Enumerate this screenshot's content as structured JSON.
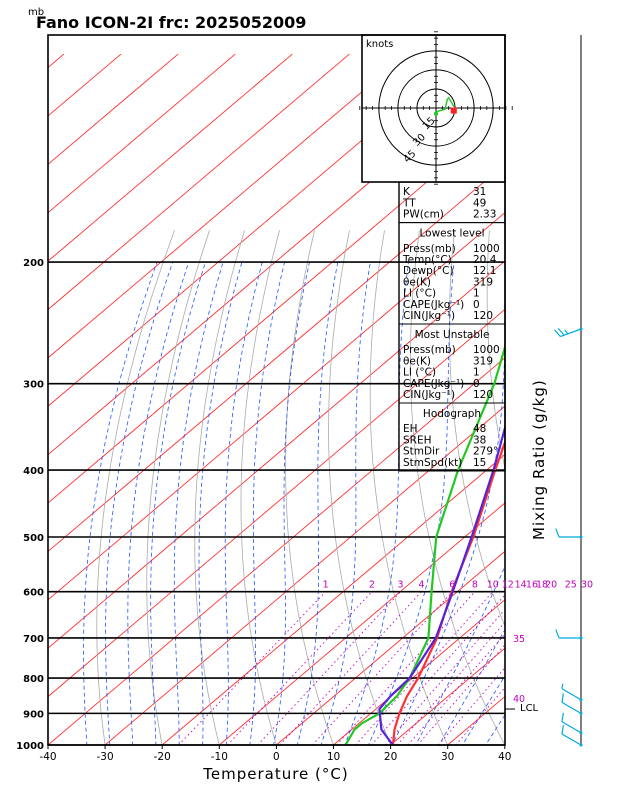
{
  "chart_data": {
    "type": "skew-t",
    "title": "Fano ICON-2I frc: 2025052009",
    "yunit": "mb",
    "xlabel": "Temperature (°C)",
    "xlim": [
      -40,
      40
    ],
    "ylim": [
      1000,
      100
    ],
    "xticks": [
      -40,
      -30,
      -20,
      -10,
      0,
      10,
      20,
      30,
      40
    ],
    "pressure_levels": [
      200,
      300,
      400,
      500,
      600,
      700,
      800,
      900,
      1000
    ],
    "mixing_ratio_label": "Mixing Ratio (g/kg)",
    "mixing_ratios": [
      {
        "label": "1",
        "value": 1
      },
      {
        "label": "2",
        "value": 2
      },
      {
        "label": "3",
        "value": 3
      },
      {
        "label": "4",
        "value": 4
      },
      {
        "label": "6",
        "value": 6
      },
      {
        "label": "8",
        "value": 8
      },
      {
        "label": "10",
        "value": 10
      },
      {
        "label": "12",
        "value": 12
      },
      {
        "label": "14",
        "value": 14
      },
      {
        "label": "16",
        "value": 16
      },
      {
        "label": "18",
        "value": 18
      },
      {
        "label": "20",
        "value": 20
      },
      {
        "label": "25",
        "value": 25
      },
      {
        "label": "30",
        "value": 30
      }
    ],
    "moist_adiabat_labels": [
      {
        "label": "35",
        "p": 700
      },
      {
        "label": "40",
        "p": 855
      }
    ],
    "lcl_label": "LCL",
    "lcl_pressure": 887,
    "series": [
      {
        "name": "Temperature",
        "color": "#ff3030",
        "points": [
          [
            1000,
            20.4
          ],
          [
            950,
            17.5
          ],
          [
            900,
            15.0
          ],
          [
            850,
            12.8
          ],
          [
            800,
            11.0
          ],
          [
            700,
            6.0
          ],
          [
            600,
            -1.0
          ],
          [
            500,
            -8.5
          ],
          [
            400,
            -18.5
          ],
          [
            300,
            -31.0
          ],
          [
            250,
            -39.0
          ]
        ]
      },
      {
        "name": "Dewpoint",
        "color": "#22c822",
        "points": [
          [
            1000,
            12.1
          ],
          [
            950,
            10.5
          ],
          [
            930,
            10.5
          ],
          [
            900,
            11.5
          ],
          [
            850,
            11.0
          ],
          [
            800,
            9.5
          ],
          [
            700,
            4.5
          ],
          [
            600,
            -4.5
          ],
          [
            500,
            -15.0
          ],
          [
            400,
            -25.0
          ],
          [
            300,
            -36.5
          ],
          [
            250,
            -45.0
          ]
        ]
      },
      {
        "name": "Parcel",
        "color": "#5522dd",
        "points": [
          [
            1000,
            20.4
          ],
          [
            950,
            15.2
          ],
          [
            887,
            10.6
          ],
          [
            850,
            9.9
          ],
          [
            800,
            9.5
          ],
          [
            700,
            5.8
          ],
          [
            600,
            -0.8
          ],
          [
            500,
            -8.8
          ],
          [
            400,
            -18.8
          ],
          [
            300,
            -32.5
          ],
          [
            200,
            -51.0
          ],
          [
            150,
            -60.0
          ],
          [
            120,
            -65.0
          ]
        ]
      }
    ],
    "wind_barbs": [
      {
        "p": 1000,
        "dir": 300,
        "spd": 10
      },
      {
        "p": 960,
        "dir": 300,
        "spd": 10
      },
      {
        "p": 900,
        "dir": 300,
        "spd": 10
      },
      {
        "p": 860,
        "dir": 300,
        "spd": 5
      },
      {
        "p": 700,
        "dir": 270,
        "spd": 10
      },
      {
        "p": 500,
        "dir": 270,
        "spd": 10
      },
      {
        "p": 250,
        "dir": 250,
        "spd": 25
      }
    ],
    "hodograph": {
      "unit_label": "knots",
      "ring_labels": [
        "15",
        "30",
        "45"
      ],
      "points": [
        [
          0,
          -3
        ],
        [
          7,
          -1
        ],
        [
          8,
          3
        ],
        [
          9,
          7
        ],
        [
          10,
          8
        ],
        [
          12,
          5
        ],
        [
          14,
          1
        ]
      ],
      "storm_motion": [
        14,
        -2
      ]
    }
  },
  "indices": {
    "rows": [
      {
        "label": "K",
        "value": "31"
      },
      {
        "label": "TT",
        "value": "49"
      },
      {
        "label": "PW(cm)",
        "value": "2.33"
      }
    ]
  },
  "lowest_level": {
    "title": "Lowest level",
    "rows": [
      {
        "label": "Press(mb)",
        "value": "1000"
      },
      {
        "label": "Temp(°C)",
        "value": "20.4"
      },
      {
        "label": "Dewp(°C)",
        "value": "12.1"
      },
      {
        "label": "θe(K)",
        "value": "319"
      },
      {
        "label": "LI (°C)",
        "value": "1"
      },
      {
        "label": "CAPE(Jkg⁻¹)",
        "value": "0"
      },
      {
        "label": "CIN(Jkg⁻¹)",
        "value": "120"
      }
    ]
  },
  "most_unstable": {
    "title": "Most Unstable",
    "rows": [
      {
        "label": "Press(mb)",
        "value": "1000"
      },
      {
        "label": "θe(K)",
        "value": "319"
      },
      {
        "label": "LI (°C)",
        "value": "1"
      },
      {
        "label": "CAPE(Jkg⁻¹)",
        "value": "0"
      },
      {
        "label": "CIN(Jkg⁻¹)",
        "value": "120"
      }
    ]
  },
  "hodograph_table": {
    "title": "Hodograph",
    "rows": [
      {
        "label": "EH",
        "value": "48"
      },
      {
        "label": "SREH",
        "value": "38"
      },
      {
        "label": "StmDir",
        "value": "279°"
      },
      {
        "label": "StmSpd(kt)",
        "value": "15"
      }
    ]
  },
  "colors": {
    "isotherm": "#ff3030",
    "dry_adiabat": "#aaaaaa",
    "moist_adiabat": "#2255ff",
    "mixing_ratio": "#c000c0",
    "wind_barb": "#00aadd"
  }
}
